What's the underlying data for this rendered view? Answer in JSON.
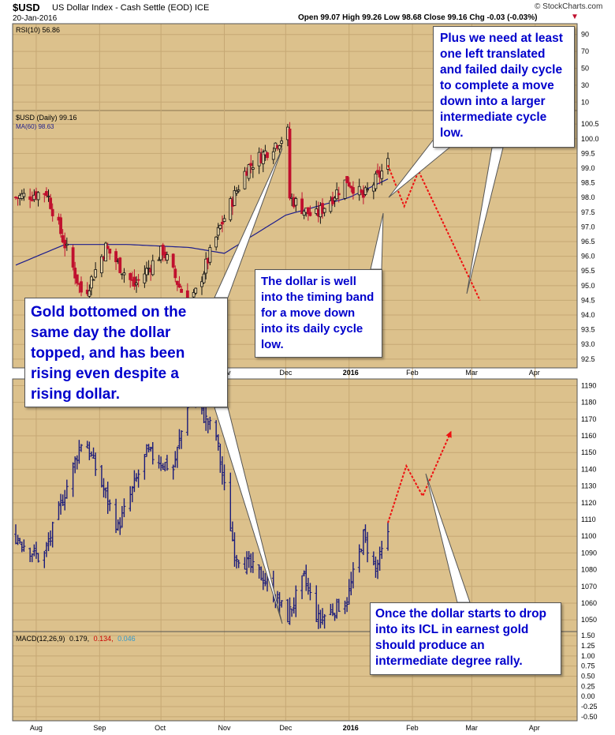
{
  "header": {
    "symbol": "$USD",
    "name": "US Dollar Index - Cash Settle (EOD) ICE",
    "date": "20-Jan-2016",
    "quote": "Open 99.07  High 99.26  Low 98.68  Close 99.16  Chg -0.03 (-0.03%)",
    "change_arrow": "▼",
    "watermark": "© StockCharts.com"
  },
  "colors": {
    "panel_bg": "#dcc18c",
    "panel_bg_light": "#e9d4a8",
    "grid": "#c6a874",
    "up_candle": "#111111",
    "down_candle": "#c0102e",
    "gold_bars": "#1a1a7a",
    "ma_line": "#1c1c8c",
    "projection": "#ee1111",
    "annotation_text": "#0000cc",
    "macd_blue": "#000066",
    "macd_red": "#cc0000",
    "macd_cyan": "#3399cc"
  },
  "chart_data": [
    {
      "type": "line",
      "panel": "RSI",
      "legend": "RSI(10) 56.86",
      "y_ticks": [
        "90",
        "70",
        "50",
        "30",
        "10"
      ],
      "last_value": 56.86
    },
    {
      "type": "candlestick",
      "panel": "$USD daily",
      "legend": [
        "$USD (Daily) 99.16",
        "MA(60) 98.63"
      ],
      "y_ticks": [
        "100.5",
        "100.0",
        "99.5",
        "99.0",
        "98.5",
        "98.0",
        "97.5",
        "97.0",
        "96.5",
        "96.0",
        "95.5",
        "95.0",
        "94.5",
        "94.0",
        "93.5",
        "93.0",
        "92.5"
      ],
      "ylim": [
        92.2,
        100.8
      ],
      "x_ticks": [
        "Aug",
        "Sep",
        "Oct",
        "Nov",
        "Dec",
        "2016",
        "Feb",
        "Mar",
        "Apr"
      ],
      "key_points": [
        {
          "date": "Jul-22",
          "value": 98.0
        },
        {
          "date": "Aug-06",
          "value": 98.2
        },
        {
          "date": "Aug-24",
          "value": 94.6
        },
        {
          "date": "Sep-04",
          "value": 96.3
        },
        {
          "date": "Sep-18",
          "value": 95.0
        },
        {
          "date": "Oct-02",
          "value": 96.2
        },
        {
          "date": "Oct-15",
          "value": 94.2
        },
        {
          "date": "Oct-30",
          "value": 97.0
        },
        {
          "date": "Nov-12",
          "value": 99.0
        },
        {
          "date": "Dec-02",
          "value": 100.2
        },
        {
          "date": "Dec-03",
          "value": 98.0
        },
        {
          "date": "Dec-15",
          "value": 97.3
        },
        {
          "date": "Dec-31",
          "value": 98.6
        },
        {
          "date": "Jan-08",
          "value": 98.0
        },
        {
          "date": "Jan-20",
          "value": 99.16
        }
      ],
      "ma60": [
        {
          "date": "Jul-22",
          "value": 95.7
        },
        {
          "date": "Aug-15",
          "value": 96.4
        },
        {
          "date": "Sep-15",
          "value": 96.4
        },
        {
          "date": "Oct-15",
          "value": 96.3
        },
        {
          "date": "Nov-01",
          "value": 96.1
        },
        {
          "date": "Dec-01",
          "value": 97.4
        },
        {
          "date": "Jan-01",
          "value": 98.0
        },
        {
          "date": "Jan-20",
          "value": 98.63
        }
      ],
      "projection": [
        {
          "date": "Jan-20",
          "value": 99.1
        },
        {
          "date": "Jan-28",
          "value": 97.7
        },
        {
          "date": "Feb-04",
          "value": 98.9
        },
        {
          "date": "Mar-05",
          "value": 94.5
        }
      ]
    },
    {
      "type": "bar",
      "panel": "Gold (OHLC bars)",
      "y_ticks": [
        "1190",
        "1180",
        "1170",
        "1160",
        "1150",
        "1140",
        "1130",
        "1120",
        "1110",
        "1100",
        "1090",
        "1080",
        "1070",
        "1060",
        "1050"
      ],
      "ylim": [
        1043,
        1194
      ],
      "x_ticks": [
        "Aug",
        "Sep",
        "Oct",
        "Nov",
        "Dec",
        "2016",
        "Feb",
        "Mar",
        "Apr"
      ],
      "key_points": [
        {
          "date": "Jul-22",
          "value": 1100
        },
        {
          "date": "Aug-04",
          "value": 1085
        },
        {
          "date": "Aug-24",
          "value": 1160
        },
        {
          "date": "Sep-10",
          "value": 1105
        },
        {
          "date": "Sep-24",
          "value": 1150
        },
        {
          "date": "Oct-07",
          "value": 1140
        },
        {
          "date": "Oct-15",
          "value": 1185
        },
        {
          "date": "Oct-28",
          "value": 1160
        },
        {
          "date": "Nov-06",
          "value": 1090
        },
        {
          "date": "Nov-20",
          "value": 1075
        },
        {
          "date": "Dec-02",
          "value": 1052
        },
        {
          "date": "Dec-10",
          "value": 1075
        },
        {
          "date": "Dec-17",
          "value": 1050
        },
        {
          "date": "Dec-31",
          "value": 1062
        },
        {
          "date": "Jan-08",
          "value": 1100
        },
        {
          "date": "Jan-14",
          "value": 1080
        },
        {
          "date": "Jan-20",
          "value": 1100
        }
      ],
      "projection": [
        {
          "date": "Jan-20",
          "value": 1108
        },
        {
          "date": "Jan-29",
          "value": 1142
        },
        {
          "date": "Feb-06",
          "value": 1124
        },
        {
          "date": "Feb-20",
          "value": 1163
        }
      ]
    },
    {
      "type": "line",
      "panel": "MACD",
      "legend": {
        "label": "MACD(12,26,9)",
        "v1": "0.179,",
        "v2": "0.134,",
        "v3": "0.046"
      },
      "y_ticks": [
        "1.50",
        "1.25",
        "1.00",
        "0.75",
        "0.50",
        "0.25",
        "0.00",
        "-0.25",
        "-0.50"
      ],
      "ylim": [
        -0.6,
        1.6
      ]
    }
  ],
  "annotations": {
    "gold_bottom": "Gold bottomed on the same day the dollar topped, and has been rising even despite a rising dollar.",
    "timing_band": "The dollar is well into the timing band for a move down into its daily cycle low.",
    "left_translated": "Plus we need at least one left translated and failed daily cycle to complete a move down into a larger intermediate cycle low.",
    "icl": "Once the dollar starts to drop into its ICL in earnest gold should produce an intermediate degree rally."
  }
}
